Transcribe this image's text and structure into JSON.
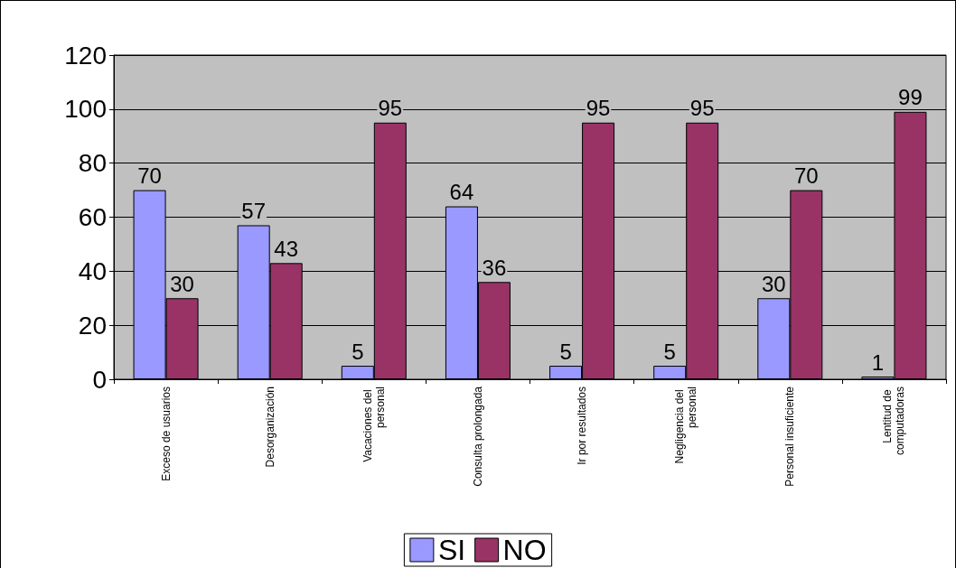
{
  "chart_data": {
    "type": "bar",
    "categories": [
      "Exceso de usuarios",
      "Desorganización",
      "Vacaciones del personal",
      "Consulta prolongada",
      "Ir por resultados",
      "Negligencia del personal",
      "Personal insuficiente",
      "Lentitud de computadoras"
    ],
    "series": [
      {
        "name": "SI",
        "color": "#9999ff",
        "values": [
          70,
          57,
          5,
          64,
          5,
          5,
          30,
          1
        ]
      },
      {
        "name": "NO",
        "color": "#993366",
        "values": [
          30,
          43,
          95,
          36,
          95,
          95,
          70,
          99
        ]
      }
    ],
    "ylim": [
      0,
      120
    ],
    "yticks": [
      0,
      20,
      40,
      60,
      80,
      100,
      120
    ],
    "grid": "y",
    "legend": "bottom",
    "data_labels": true
  }
}
